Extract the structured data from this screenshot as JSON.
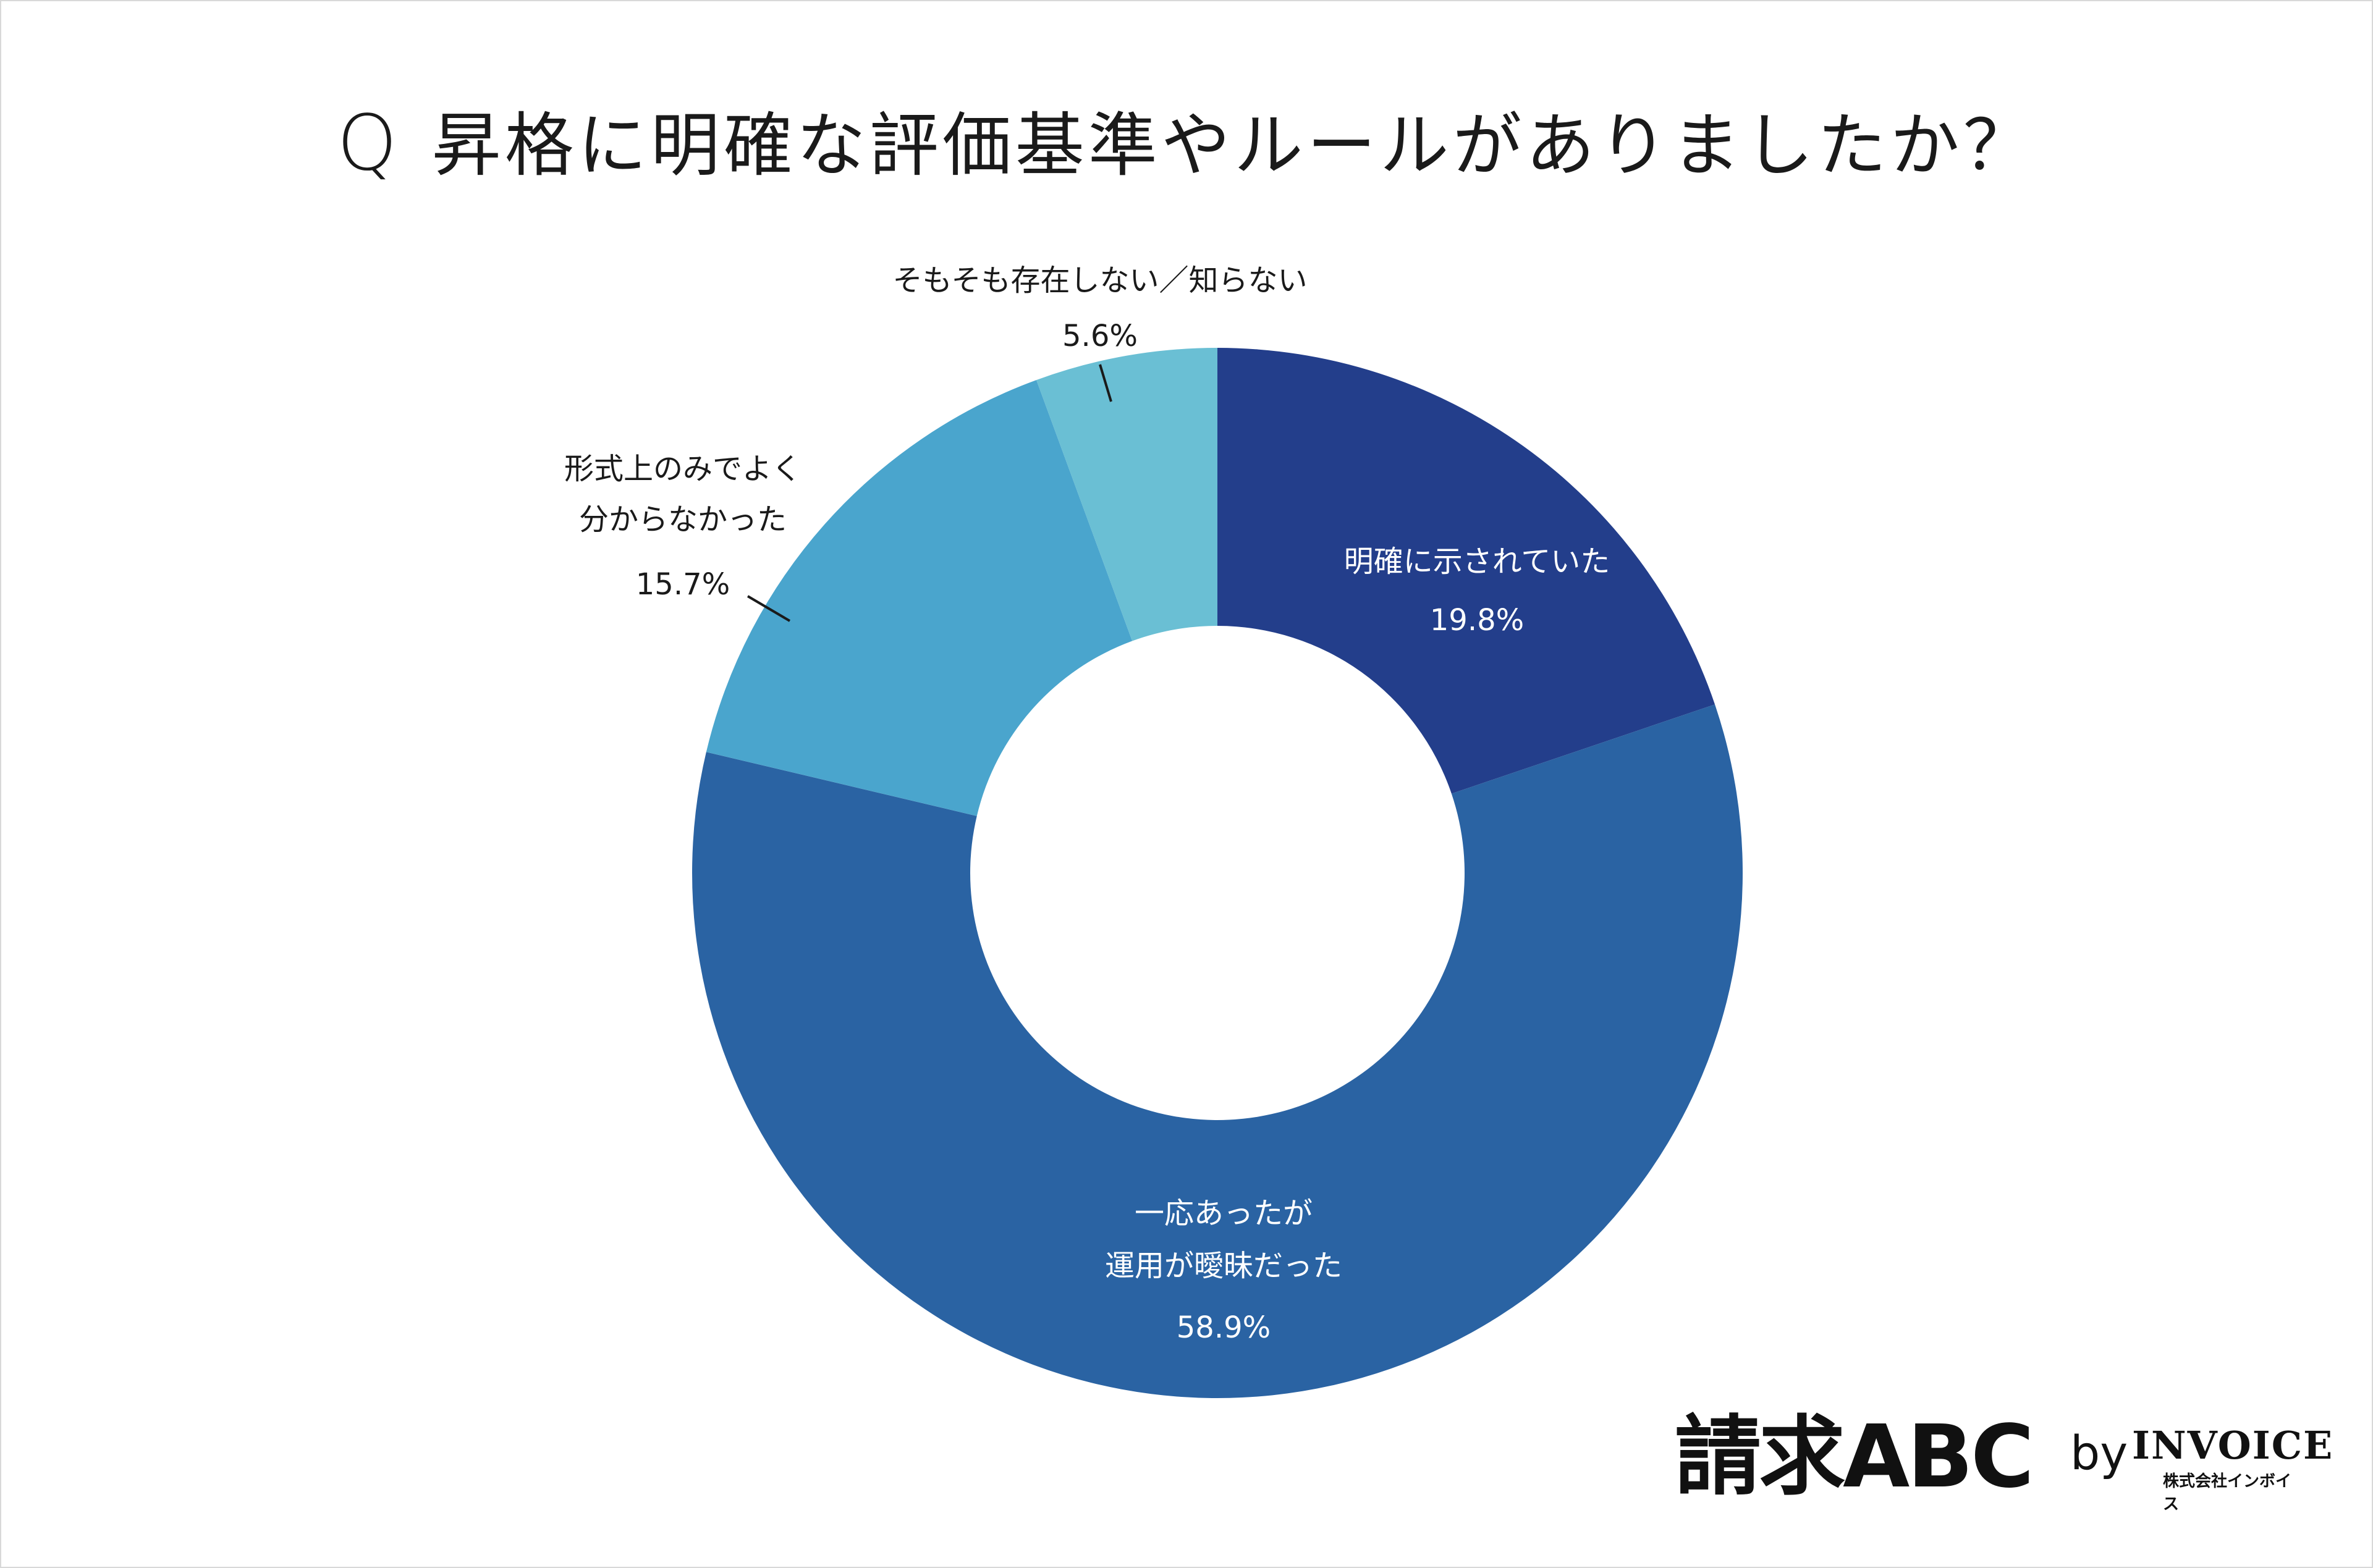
{
  "question": {
    "mark": "Q",
    "text": "昇格に明確な評価基準やルールがありましたか？"
  },
  "chart_data": {
    "type": "pie",
    "donut": true,
    "categories": [
      "明確に示されていた",
      "一応あったが運用が曖昧だった",
      "形式上のみでよく分からなかった",
      "そもそも存在しない／知らない"
    ],
    "values": [
      19.8,
      58.9,
      15.7,
      5.6
    ],
    "labels": [
      {
        "lines": [
          "明確に示されていた"
        ],
        "pct": "19.8%"
      },
      {
        "lines": [
          "一応あったが",
          "運用が曖昧だった"
        ],
        "pct": "58.9%"
      },
      {
        "lines": [
          "形式上のみでよく",
          "分からなかった"
        ],
        "pct": "15.7%"
      },
      {
        "lines": [
          "そもそも存在しない／知らない"
        ],
        "pct": "5.6%"
      }
    ],
    "colors": [
      "#233e8b",
      "#2a63a3",
      "#4aa5cd",
      "#6abfd4"
    ],
    "label_colors": [
      "#ffffff",
      "#ffffff",
      "#1a1a1a",
      "#1a1a1a"
    ]
  },
  "logo": {
    "brand": "請求ABC",
    "by": "by",
    "company": "INVOICE",
    "company_sub": "株式会社インボイス"
  }
}
